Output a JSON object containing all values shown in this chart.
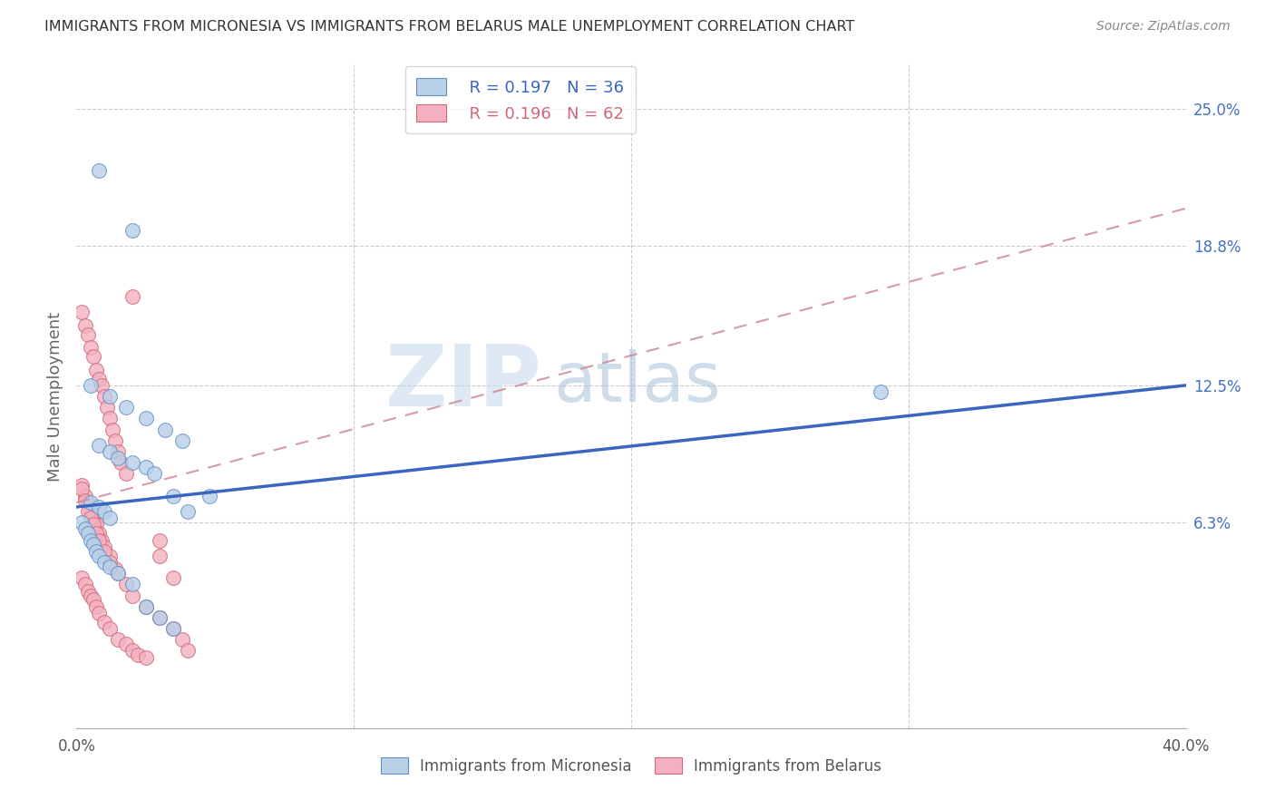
{
  "title": "IMMIGRANTS FROM MICRONESIA VS IMMIGRANTS FROM BELARUS MALE UNEMPLOYMENT CORRELATION CHART",
  "source": "Source: ZipAtlas.com",
  "ylabel": "Male Unemployment",
  "x_min": 0.0,
  "x_max": 0.4,
  "y_min": -0.03,
  "y_max": 0.27,
  "y_tick_labels_right": [
    "25.0%",
    "18.8%",
    "12.5%",
    "6.3%"
  ],
  "y_tick_values_right": [
    0.25,
    0.188,
    0.125,
    0.063
  ],
  "legend_r1": "R = 0.197",
  "legend_n1": "N = 36",
  "legend_r2": "R = 0.196",
  "legend_n2": "N = 62",
  "color_micronesia_fill": "#b8d0e8",
  "color_micronesia_edge": "#6090c8",
  "color_belarus_fill": "#f4b0c0",
  "color_belarus_edge": "#d06878",
  "color_blue_line": "#3a65c0",
  "color_pink_dashed": "#d08898",
  "watermark_zip": "ZIP",
  "watermark_atlas": "atlas",
  "micronesia_x": [
    0.008,
    0.02,
    0.005,
    0.012,
    0.018,
    0.025,
    0.032,
    0.038,
    0.008,
    0.012,
    0.015,
    0.02,
    0.025,
    0.028,
    0.035,
    0.04,
    0.048,
    0.005,
    0.008,
    0.01,
    0.012,
    0.002,
    0.003,
    0.004,
    0.005,
    0.006,
    0.007,
    0.008,
    0.01,
    0.012,
    0.015,
    0.02,
    0.025,
    0.03,
    0.035,
    0.29
  ],
  "micronesia_y": [
    0.222,
    0.195,
    0.125,
    0.12,
    0.115,
    0.11,
    0.105,
    0.1,
    0.098,
    0.095,
    0.092,
    0.09,
    0.088,
    0.085,
    0.075,
    0.068,
    0.075,
    0.072,
    0.07,
    0.068,
    0.065,
    0.063,
    0.06,
    0.058,
    0.055,
    0.053,
    0.05,
    0.048,
    0.045,
    0.043,
    0.04,
    0.035,
    0.025,
    0.02,
    0.015,
    0.122
  ],
  "belarus_x": [
    0.002,
    0.003,
    0.004,
    0.005,
    0.006,
    0.007,
    0.008,
    0.009,
    0.01,
    0.011,
    0.012,
    0.013,
    0.014,
    0.015,
    0.016,
    0.018,
    0.02,
    0.002,
    0.003,
    0.004,
    0.005,
    0.006,
    0.007,
    0.008,
    0.009,
    0.01,
    0.012,
    0.014,
    0.002,
    0.003,
    0.004,
    0.005,
    0.006,
    0.007,
    0.008,
    0.01,
    0.012,
    0.015,
    0.018,
    0.02,
    0.022,
    0.025,
    0.03,
    0.03,
    0.035,
    0.002,
    0.003,
    0.004,
    0.005,
    0.006,
    0.007,
    0.008,
    0.01,
    0.012,
    0.015,
    0.018,
    0.02,
    0.025,
    0.03,
    0.035,
    0.038,
    0.04
  ],
  "belarus_y": [
    0.158,
    0.152,
    0.148,
    0.142,
    0.138,
    0.132,
    0.128,
    0.125,
    0.12,
    0.115,
    0.11,
    0.105,
    0.1,
    0.095,
    0.09,
    0.085,
    0.165,
    0.08,
    0.075,
    0.072,
    0.068,
    0.065,
    0.062,
    0.058,
    0.055,
    0.052,
    0.048,
    0.042,
    0.038,
    0.035,
    0.032,
    0.03,
    0.028,
    0.025,
    0.022,
    0.018,
    0.015,
    0.01,
    0.008,
    0.005,
    0.003,
    0.002,
    0.055,
    0.048,
    0.038,
    0.078,
    0.073,
    0.068,
    0.065,
    0.062,
    0.058,
    0.055,
    0.05,
    0.045,
    0.04,
    0.035,
    0.03,
    0.025,
    0.02,
    0.015,
    0.01,
    0.005
  ],
  "micronesia_trend_x": [
    0.0,
    0.4
  ],
  "micronesia_trend_y": [
    0.07,
    0.125
  ],
  "belarus_trend_x": [
    0.0,
    0.4
  ],
  "belarus_trend_y": [
    0.072,
    0.205
  ]
}
